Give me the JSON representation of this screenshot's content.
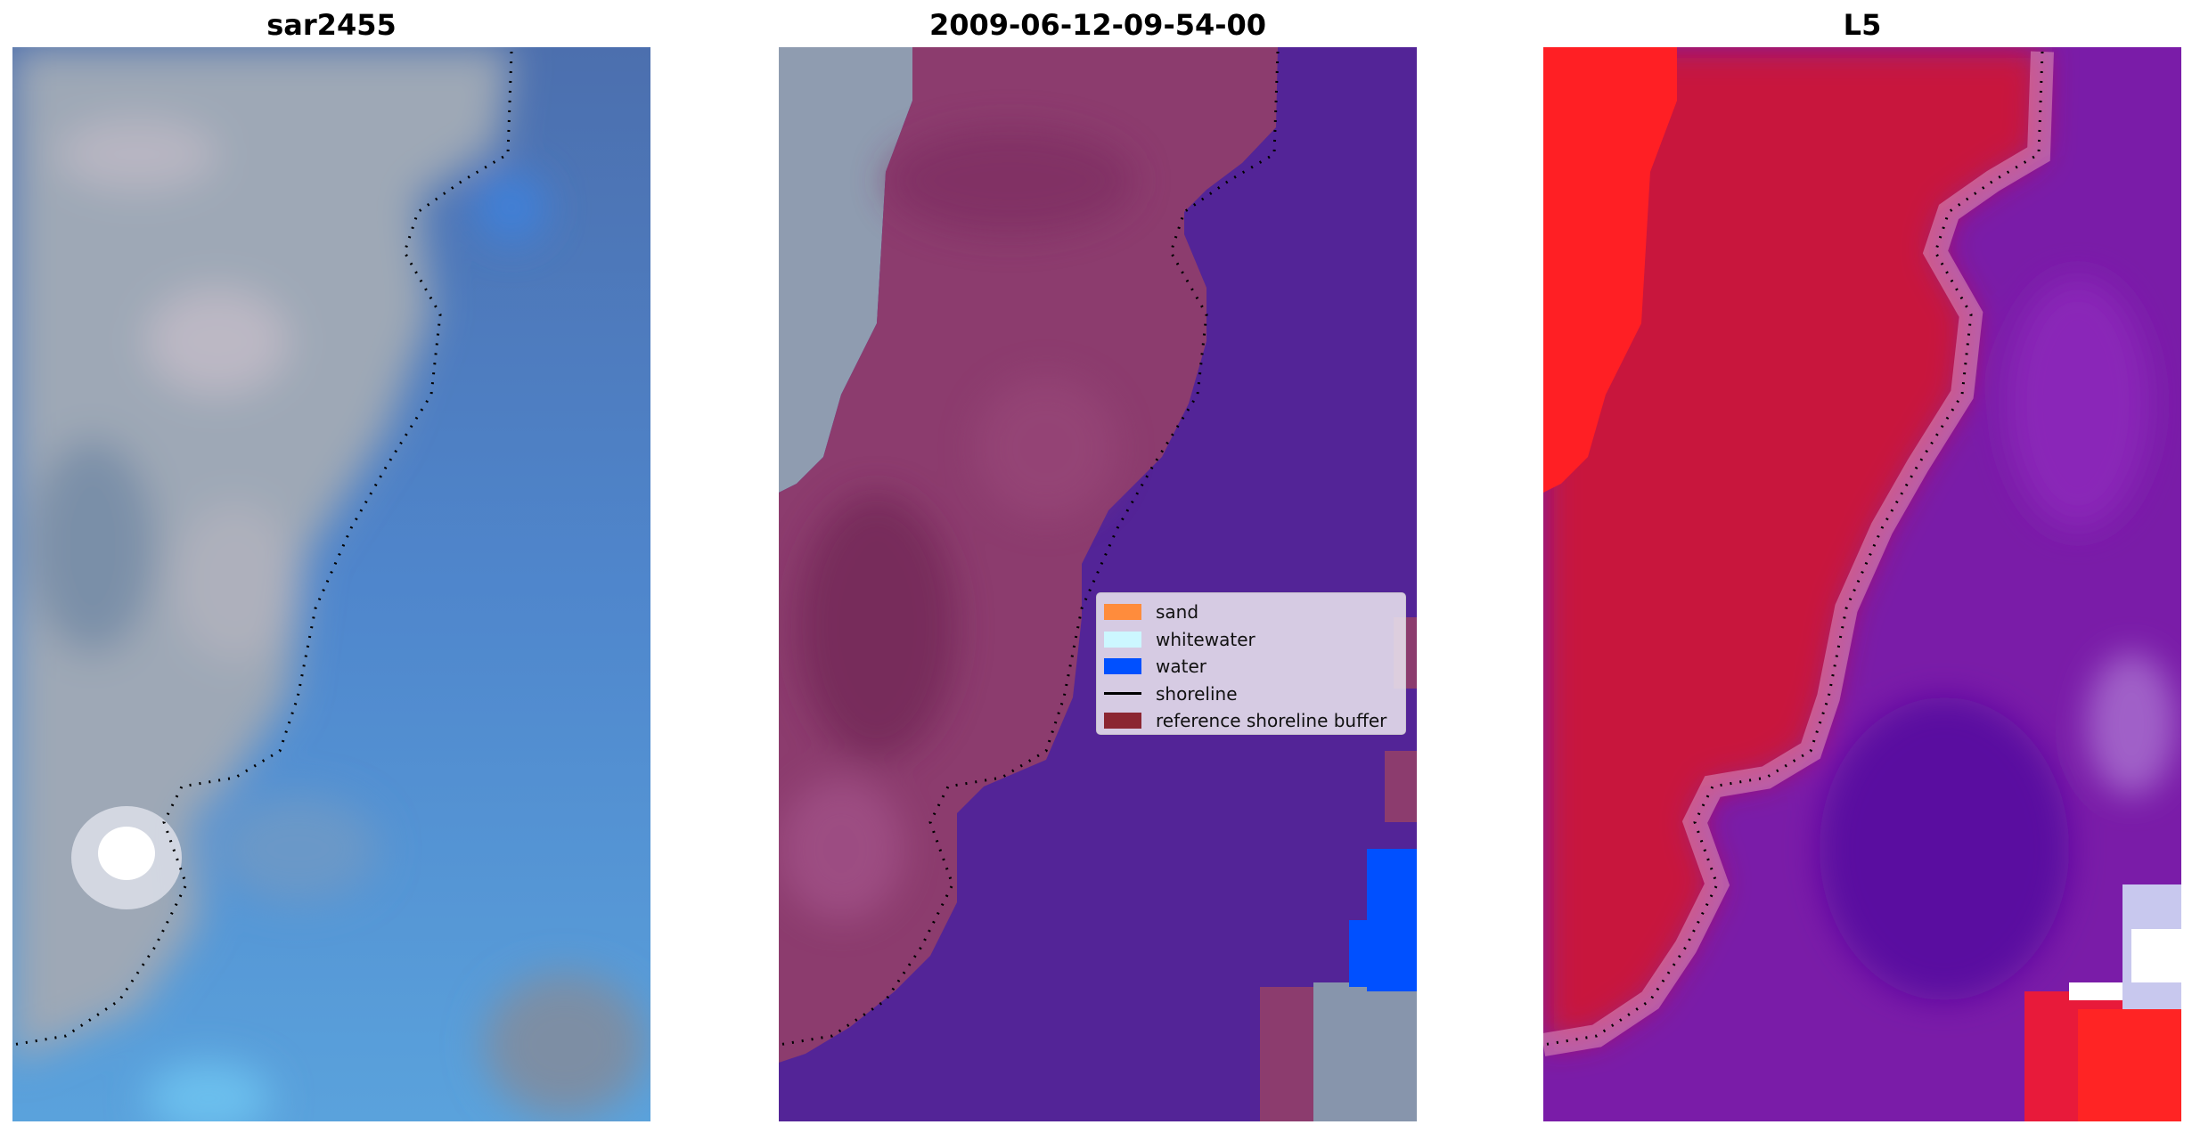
{
  "panels": [
    {
      "title": "sar2455"
    },
    {
      "title": "2009-06-12-09-54-00"
    },
    {
      "title": "L5"
    }
  ],
  "legend": {
    "items": [
      {
        "label": "sand",
        "color": "#ff8c3c",
        "kind": "patch"
      },
      {
        "label": "whitewater",
        "color": "#ccf7ff",
        "kind": "patch"
      },
      {
        "label": "water",
        "color": "#0050ff",
        "kind": "patch"
      },
      {
        "label": "shoreline",
        "color": "#000000",
        "kind": "line"
      },
      {
        "label": "reference shoreline buffer",
        "color": "#8b2632",
        "kind": "patch"
      }
    ]
  },
  "colors": {
    "sar_land": "#9aa4b4",
    "sar_water": "#4a78b8",
    "classified_sand_overlay": "#8c3c6e",
    "classified_water": "#532497",
    "index_land": "#c8123c",
    "index_water": "#7a1ca8",
    "shoreline_dots": "#000000"
  }
}
